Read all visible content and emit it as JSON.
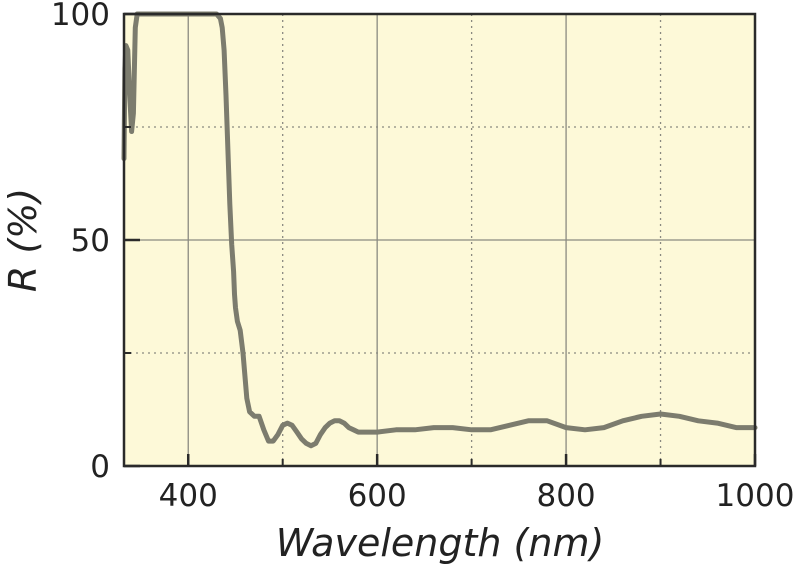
{
  "chart_data": {
    "type": "line",
    "title": "",
    "xlabel": "Wavelength (nm)",
    "ylabel": "R (%)",
    "xlim": [
      332,
      1000
    ],
    "ylim": [
      0,
      100
    ],
    "x_major_ticks": [
      400,
      600,
      800,
      1000
    ],
    "x_minor_ticks": [
      500,
      700,
      900
    ],
    "y_major_ticks": [
      0,
      50,
      100
    ],
    "y_minor_ticks": [
      25,
      75
    ],
    "grid": true,
    "colors": {
      "background": "#fdf9d8",
      "line": "#7c7c6e",
      "grid_major": "#8a8a80",
      "grid_minor": "#8a8a80",
      "frame": "#2a2a2a"
    },
    "series": [
      {
        "x": [
          332,
          333,
          334,
          336,
          338,
          340,
          342,
          344,
          346,
          350,
          360,
          380,
          400,
          420,
          430,
          434,
          436,
          438,
          440,
          442,
          444,
          446,
          448,
          449,
          450,
          452,
          455,
          458,
          460,
          462,
          465,
          470,
          475,
          480,
          485,
          490,
          495,
          500,
          505,
          510,
          515,
          520,
          525,
          530,
          535,
          540,
          545,
          550,
          555,
          560,
          565,
          570,
          575,
          580,
          590,
          600,
          620,
          640,
          660,
          680,
          700,
          720,
          740,
          760,
          780,
          800,
          820,
          840,
          860,
          880,
          900,
          920,
          940,
          960,
          980,
          1000
        ],
        "y": [
          68,
          88,
          93,
          92,
          82,
          74,
          78,
          97,
          100,
          100,
          100,
          100,
          100,
          100,
          100,
          99,
          97,
          92,
          82,
          70,
          58,
          49,
          43,
          38,
          35,
          32,
          30,
          25,
          20,
          15,
          12,
          11,
          11,
          8,
          5.5,
          5.5,
          7,
          9,
          9.5,
          9,
          7.5,
          6,
          5,
          4.5,
          5,
          7,
          8.5,
          9.5,
          10,
          10,
          9.5,
          8.5,
          8,
          7.5,
          7.5,
          7.5,
          8,
          8,
          8.5,
          8.5,
          8,
          8,
          9,
          10,
          10,
          8.5,
          8,
          8.5,
          10,
          11,
          11.5,
          11,
          10,
          9.5,
          8.5,
          8.5
        ]
      }
    ]
  }
}
